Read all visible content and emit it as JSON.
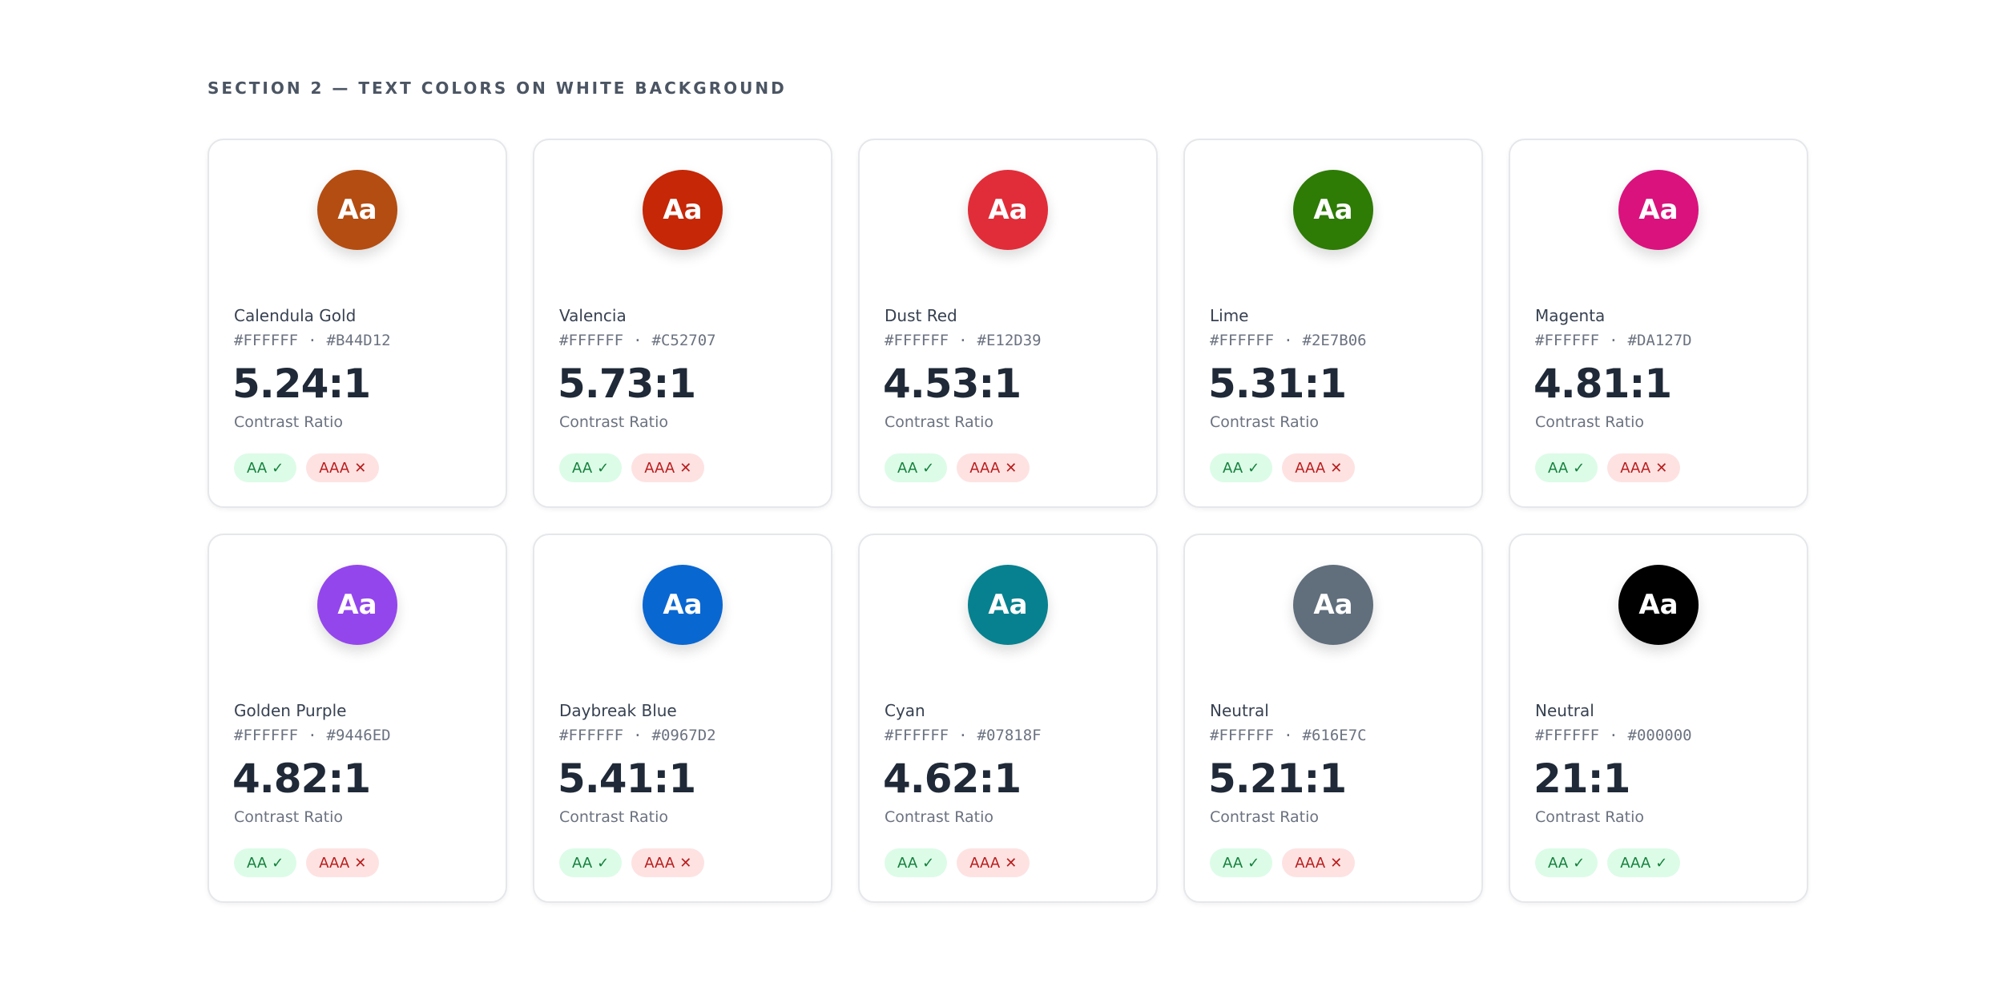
{
  "section": {
    "title": "SECTION 2 — TEXT COLORS ON WHITE BACKGROUND"
  },
  "cards": [
    {
      "name": "Calendula Gold",
      "fg": "#FFFFFF",
      "bg": "#B44D12",
      "color": "#B44D12",
      "sample": "Aa",
      "ratio": "5.24:1",
      "ratio_label": "Contrast Ratio",
      "aa": {
        "label": "AA",
        "pass": true,
        "mark": "✓"
      },
      "aaa": {
        "label": "AAA",
        "pass": false,
        "mark": "✕"
      }
    },
    {
      "name": "Valencia",
      "fg": "#FFFFFF",
      "bg": "#C52707",
      "color": "#C52707",
      "sample": "Aa",
      "ratio": "5.73:1",
      "ratio_label": "Contrast Ratio",
      "aa": {
        "label": "AA",
        "pass": true,
        "mark": "✓"
      },
      "aaa": {
        "label": "AAA",
        "pass": false,
        "mark": "✕"
      }
    },
    {
      "name": "Dust Red",
      "fg": "#FFFFFF",
      "bg": "#E12D39",
      "color": "#E12D39",
      "sample": "Aa",
      "ratio": "4.53:1",
      "ratio_label": "Contrast Ratio",
      "aa": {
        "label": "AA",
        "pass": true,
        "mark": "✓"
      },
      "aaa": {
        "label": "AAA",
        "pass": false,
        "mark": "✕"
      }
    },
    {
      "name": "Lime",
      "fg": "#FFFFFF",
      "bg": "#2E7B06",
      "color": "#2E7B06",
      "sample": "Aa",
      "ratio": "5.31:1",
      "ratio_label": "Contrast Ratio",
      "aa": {
        "label": "AA",
        "pass": true,
        "mark": "✓"
      },
      "aaa": {
        "label": "AAA",
        "pass": false,
        "mark": "✕"
      }
    },
    {
      "name": "Magenta",
      "fg": "#FFFFFF",
      "bg": "#DA127D",
      "color": "#DA127D",
      "sample": "Aa",
      "ratio": "4.81:1",
      "ratio_label": "Contrast Ratio",
      "aa": {
        "label": "AA",
        "pass": true,
        "mark": "✓"
      },
      "aaa": {
        "label": "AAA",
        "pass": false,
        "mark": "✕"
      }
    },
    {
      "name": "Golden Purple",
      "fg": "#FFFFFF",
      "bg": "#9446ED",
      "color": "#9446ED",
      "sample": "Aa",
      "ratio": "4.82:1",
      "ratio_label": "Contrast Ratio",
      "aa": {
        "label": "AA",
        "pass": true,
        "mark": "✓"
      },
      "aaa": {
        "label": "AAA",
        "pass": false,
        "mark": "✕"
      }
    },
    {
      "name": "Daybreak Blue",
      "fg": "#FFFFFF",
      "bg": "#0967D2",
      "color": "#0967D2",
      "sample": "Aa",
      "ratio": "5.41:1",
      "ratio_label": "Contrast Ratio",
      "aa": {
        "label": "AA",
        "pass": true,
        "mark": "✓"
      },
      "aaa": {
        "label": "AAA",
        "pass": false,
        "mark": "✕"
      }
    },
    {
      "name": "Cyan",
      "fg": "#FFFFFF",
      "bg": "#07818F",
      "color": "#07818F",
      "sample": "Aa",
      "ratio": "4.62:1",
      "ratio_label": "Contrast Ratio",
      "aa": {
        "label": "AA",
        "pass": true,
        "mark": "✓"
      },
      "aaa": {
        "label": "AAA",
        "pass": false,
        "mark": "✕"
      }
    },
    {
      "name": "Neutral",
      "fg": "#FFFFFF",
      "bg": "#616E7C",
      "color": "#616E7C",
      "sample": "Aa",
      "ratio": "5.21:1",
      "ratio_label": "Contrast Ratio",
      "aa": {
        "label": "AA",
        "pass": true,
        "mark": "✓"
      },
      "aaa": {
        "label": "AAA",
        "pass": false,
        "mark": "✕"
      }
    },
    {
      "name": "Neutral",
      "fg": "#FFFFFF",
      "bg": "#000000",
      "color": "#000000",
      "sample": "Aa",
      "ratio": "21:1",
      "ratio_label": "Contrast Ratio",
      "aa": {
        "label": "AA",
        "pass": true,
        "mark": "✓"
      },
      "aaa": {
        "label": "AAA",
        "pass": true,
        "mark": "✓"
      }
    }
  ],
  "separator": "·"
}
